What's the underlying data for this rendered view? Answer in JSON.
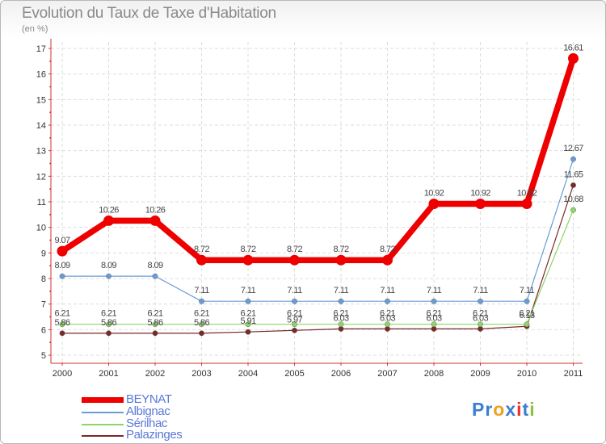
{
  "chart_data": {
    "type": "line",
    "title": "Evolution du Taux de Taxe d'Habitation",
    "subtitle": "(en %)",
    "xlabel": "",
    "ylabel": "(en %)",
    "categories": [
      "2000",
      "2001",
      "2002",
      "2003",
      "2004",
      "2005",
      "2006",
      "2007",
      "2008",
      "2009",
      "2010",
      "2011"
    ],
    "ylim": [
      5,
      17
    ],
    "yticks": [
      "5",
      "6",
      "7",
      "8",
      "9",
      "10",
      "11",
      "12",
      "13",
      "14",
      "15",
      "16",
      "17"
    ],
    "grid": true,
    "series": [
      {
        "name": "BEYNAT",
        "color": "#ee0000",
        "values": [
          9.07,
          10.26,
          10.26,
          8.72,
          8.72,
          8.72,
          8.72,
          8.72,
          10.92,
          10.92,
          10.92,
          16.61
        ],
        "labels": [
          "9.07",
          "10.26",
          "10.26",
          "8.72",
          "8.72",
          "8.72",
          "8.72",
          "8.72",
          "10.92",
          "10.92",
          "10.92",
          "16.61"
        ]
      },
      {
        "name": "Albignac",
        "color": "#6a9cd4",
        "values": [
          8.09,
          8.09,
          8.09,
          7.11,
          7.11,
          7.11,
          7.11,
          7.11,
          7.11,
          7.11,
          7.11,
          12.67
        ],
        "labels": [
          "8.09",
          "8.09",
          "8.09",
          "7.11",
          "7.11",
          "7.11",
          "7.11",
          "7.11",
          "7.11",
          "7.11",
          "7.11",
          "12.67"
        ]
      },
      {
        "name": "Sérilhac",
        "color": "#8fd46a",
        "values": [
          6.21,
          6.21,
          6.21,
          6.21,
          6.21,
          6.21,
          6.21,
          6.21,
          6.21,
          6.21,
          6.21,
          10.68
        ],
        "labels": [
          "6.21",
          "6.21",
          "6.21",
          "6.21",
          "6.21",
          "6.21",
          "6.21",
          "6.21",
          "6.21",
          "6.21",
          "6.21",
          "10.68"
        ]
      },
      {
        "name": "Palazinges",
        "color": "#7a2a2a",
        "values": [
          5.86,
          5.86,
          5.86,
          5.86,
          5.91,
          5.97,
          6.03,
          6.03,
          6.03,
          6.03,
          6.13,
          11.65
        ],
        "labels": [
          "5.86",
          "5.86",
          "5.86",
          "5.86",
          "5.91",
          "5.97",
          "6.03",
          "6.03",
          "6.03",
          "6.03",
          "6.13",
          "11.65"
        ]
      }
    ]
  },
  "legend": [
    {
      "name": "BEYNAT",
      "color": "#ee0000"
    },
    {
      "name": "Albignac",
      "color": "#6a9cd4"
    },
    {
      "name": "Sérilhac",
      "color": "#8fd46a"
    },
    {
      "name": "Palazinges",
      "color": "#7a2a2a"
    }
  ],
  "logo": {
    "letters": [
      "P",
      "r",
      "o",
      "x",
      "i",
      "t",
      "i"
    ],
    "colors": [
      "#3a7fd0",
      "#3a7fd0",
      "#f0a020",
      "#3a7fd0",
      "#e83030",
      "#3a7fd0",
      "#8bc23a"
    ]
  }
}
